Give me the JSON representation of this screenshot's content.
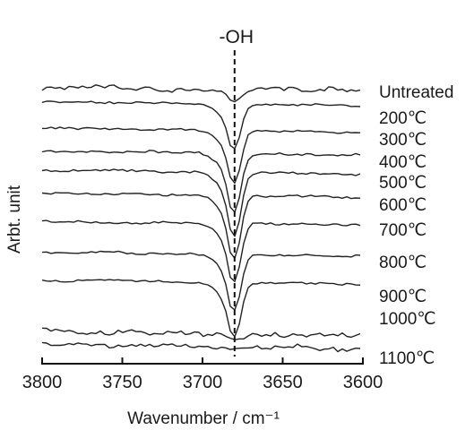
{
  "chart_data": {
    "type": "line",
    "title": "",
    "xlabel": "Wavenumber / cm⁻¹",
    "ylabel": "Arbt. unit",
    "xlim": [
      3800,
      3600
    ],
    "x_ticks": [
      3800,
      3750,
      3700,
      3650,
      3600
    ],
    "x_tick_labels": [
      "3800",
      "3750",
      "3700",
      "3650",
      "3600"
    ],
    "grid": false,
    "legend": "series labels at right end of each trace",
    "annotations": [
      {
        "text": "-OH",
        "x": 3680,
        "style": "dashed vertical line"
      }
    ],
    "peak_x": 3680,
    "series": [
      {
        "name": "Untreated",
        "peak_depth": 0.15
      },
      {
        "name": "200℃",
        "peak_depth": 0.7
      },
      {
        "name": "300℃",
        "peak_depth": 0.85
      },
      {
        "name": "400℃",
        "peak_depth": 0.95
      },
      {
        "name": "500℃",
        "peak_depth": 1.0
      },
      {
        "name": "600℃",
        "peak_depth": 1.0
      },
      {
        "name": "700℃",
        "peak_depth": 0.95
      },
      {
        "name": "800℃",
        "peak_depth": 0.9
      },
      {
        "name": "900℃",
        "peak_depth": 0.85
      },
      {
        "name": "1000℃",
        "peak_depth": 0.25
      },
      {
        "name": "1100℃",
        "peak_depth": 0.15
      }
    ]
  }
}
